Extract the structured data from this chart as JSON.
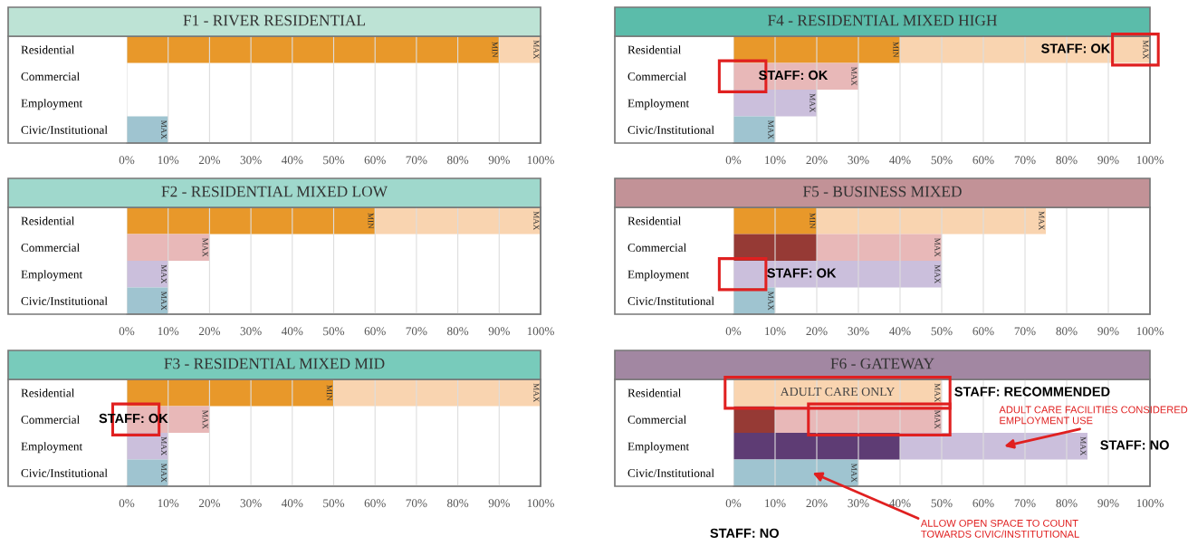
{
  "chart_data": [
    {
      "type": "bar",
      "orientation": "horizontal",
      "stacked": true,
      "grid": "x",
      "title": "F1 - RIVER RESIDENTIAL",
      "categories": [
        "Residential",
        "Commercial",
        "Employment",
        "Civic/Institutional"
      ],
      "xlim": [
        0,
        100
      ],
      "xticks": [
        {
          "value": 0,
          "label": "0%"
        },
        {
          "value": 10,
          "label": "10%"
        },
        {
          "value": 20,
          "label": "20%"
        },
        {
          "value": 30,
          "label": "30%"
        },
        {
          "value": 40,
          "label": "40%"
        },
        {
          "value": 50,
          "label": "50%"
        },
        {
          "value": 60,
          "label": "60%"
        },
        {
          "value": 70,
          "label": "70%"
        },
        {
          "value": 80,
          "label": "80%"
        },
        {
          "value": 90,
          "label": "90%"
        },
        {
          "value": 100,
          "label": "100%"
        }
      ],
      "series": [
        {
          "values": [
            90,
            null,
            null,
            null
          ],
          "colors": [
            "#e8982a",
            "#963a35",
            "#5e3c74",
            "#9fc4d0"
          ],
          "value_labels": [
            "MIN",
            null,
            null,
            null
          ]
        },
        {
          "values": [
            10,
            null,
            null,
            10
          ],
          "colors": [
            "#f9d4b0",
            "#e8b8b8",
            "#cbbfdc",
            "#9fc4d0"
          ],
          "value_labels": [
            "MAX",
            null,
            null,
            "MAX"
          ]
        }
      ]
    },
    {
      "type": "bar",
      "orientation": "horizontal",
      "stacked": true,
      "grid": "x",
      "title": "F4 - RESIDENTIAL MIXED HIGH",
      "categories": [
        "Residential",
        "Commercial",
        "Employment",
        "Civic/Institutional"
      ],
      "xlim": [
        0,
        100
      ],
      "xticks": [
        {
          "value": 0,
          "label": "0%"
        },
        {
          "value": 10,
          "label": "10%"
        },
        {
          "value": 20,
          "label": "20%"
        },
        {
          "value": 30,
          "label": "30%"
        },
        {
          "value": 40,
          "label": "40%"
        },
        {
          "value": 50,
          "label": "50%"
        },
        {
          "value": 60,
          "label": "60%"
        },
        {
          "value": 70,
          "label": "70%"
        },
        {
          "value": 80,
          "label": "80%"
        },
        {
          "value": 90,
          "label": "90%"
        },
        {
          "value": 100,
          "label": "100%"
        }
      ],
      "series": [
        {
          "values": [
            40,
            null,
            null,
            null
          ],
          "colors": [
            "#e8982a",
            "#963a35",
            "#5e3c74",
            "#9fc4d0"
          ],
          "value_labels": [
            "MIN",
            null,
            null,
            null
          ]
        },
        {
          "values": [
            60,
            30,
            20,
            10
          ],
          "colors": [
            "#f9d4b0",
            "#e8b8b8",
            "#cbbfdc",
            "#9fc4d0"
          ],
          "value_labels": [
            "MAX",
            "MAX",
            "MAX",
            "MAX"
          ]
        }
      ],
      "annotations": [
        "STAFF: OK",
        "STAFF: OK"
      ]
    },
    {
      "type": "bar",
      "orientation": "horizontal",
      "stacked": true,
      "grid": "x",
      "title": "F2 - RESIDENTIAL MIXED LOW",
      "categories": [
        "Residential",
        "Commercial",
        "Employment",
        "Civic/Institutional"
      ],
      "xlim": [
        0,
        100
      ],
      "xticks": [
        {
          "value": 0,
          "label": "0%"
        },
        {
          "value": 10,
          "label": "10%"
        },
        {
          "value": 20,
          "label": "20%"
        },
        {
          "value": 30,
          "label": "30%"
        },
        {
          "value": 40,
          "label": "40%"
        },
        {
          "value": 50,
          "label": "50%"
        },
        {
          "value": 60,
          "label": "60%"
        },
        {
          "value": 70,
          "label": "70%"
        },
        {
          "value": 80,
          "label": "80%"
        },
        {
          "value": 90,
          "label": "90%"
        },
        {
          "value": 100,
          "label": "100%"
        }
      ],
      "series": [
        {
          "values": [
            60,
            null,
            null,
            null
          ],
          "colors": [
            "#e8982a",
            "#963a35",
            "#5e3c74",
            "#9fc4d0"
          ],
          "value_labels": [
            "MIN",
            null,
            null,
            null
          ]
        },
        {
          "values": [
            40,
            20,
            10,
            10
          ],
          "colors": [
            "#f9d4b0",
            "#e8b8b8",
            "#cbbfdc",
            "#9fc4d0"
          ],
          "value_labels": [
            "MAX",
            "MAX",
            "MAX",
            "MAX"
          ]
        }
      ]
    },
    {
      "type": "bar",
      "orientation": "horizontal",
      "stacked": true,
      "grid": "x",
      "title": "F5 - BUSINESS MIXED",
      "categories": [
        "Residential",
        "Commercial",
        "Employment",
        "Civic/Institutional"
      ],
      "xlim": [
        0,
        100
      ],
      "xticks": [
        {
          "value": 0,
          "label": "0%"
        },
        {
          "value": 10,
          "label": "10%"
        },
        {
          "value": 20,
          "label": "20%"
        },
        {
          "value": 30,
          "label": "30%"
        },
        {
          "value": 40,
          "label": "40%"
        },
        {
          "value": 50,
          "label": "50%"
        },
        {
          "value": 60,
          "label": "60%"
        },
        {
          "value": 70,
          "label": "70%"
        },
        {
          "value": 80,
          "label": "80%"
        },
        {
          "value": 90,
          "label": "90%"
        },
        {
          "value": 100,
          "label": "100%"
        }
      ],
      "series": [
        {
          "values": [
            20,
            20,
            null,
            null
          ],
          "colors": [
            "#e8982a",
            "#963a35",
            "#5e3c74",
            "#9fc4d0"
          ],
          "value_labels": [
            "MIN",
            null,
            null,
            null
          ]
        },
        {
          "values": [
            55,
            30,
            50,
            10
          ],
          "colors": [
            "#f9d4b0",
            "#e8b8b8",
            "#cbbfdc",
            "#9fc4d0"
          ],
          "value_labels": [
            "MAX",
            "MAX",
            "MAX",
            "MAX"
          ]
        }
      ],
      "annotations": [
        "STAFF: OK"
      ]
    },
    {
      "type": "bar",
      "orientation": "horizontal",
      "stacked": true,
      "grid": "x",
      "title": "F3 - RESIDENTIAL MIXED MID",
      "categories": [
        "Residential",
        "Commercial",
        "Employment",
        "Civic/Institutional"
      ],
      "xlim": [
        0,
        100
      ],
      "xticks": [
        {
          "value": 0,
          "label": "0%"
        },
        {
          "value": 10,
          "label": "10%"
        },
        {
          "value": 20,
          "label": "20%"
        },
        {
          "value": 30,
          "label": "30%"
        },
        {
          "value": 40,
          "label": "40%"
        },
        {
          "value": 50,
          "label": "50%"
        },
        {
          "value": 60,
          "label": "60%"
        },
        {
          "value": 70,
          "label": "70%"
        },
        {
          "value": 80,
          "label": "80%"
        },
        {
          "value": 90,
          "label": "90%"
        },
        {
          "value": 100,
          "label": "100%"
        }
      ],
      "series": [
        {
          "values": [
            50,
            null,
            null,
            null
          ],
          "colors": [
            "#e8982a",
            "#963a35",
            "#5e3c74",
            "#9fc4d0"
          ],
          "value_labels": [
            "MIN",
            null,
            null,
            null
          ]
        },
        {
          "values": [
            50,
            20,
            10,
            10
          ],
          "colors": [
            "#f9d4b0",
            "#e8b8b8",
            "#cbbfdc",
            "#9fc4d0"
          ],
          "value_labels": [
            "MAX",
            "MAX",
            "MAX",
            "MAX"
          ]
        }
      ],
      "annotations": [
        "STAFF: OK"
      ]
    },
    {
      "type": "bar",
      "orientation": "horizontal",
      "stacked": true,
      "grid": "x",
      "title": "F6 - GATEWAY",
      "categories": [
        "Residential",
        "Commercial",
        "Employment",
        "Civic/Institutional"
      ],
      "xlim": [
        0,
        100
      ],
      "xticks": [
        {
          "value": 0,
          "label": "0%"
        },
        {
          "value": 10,
          "label": "10%"
        },
        {
          "value": 20,
          "label": "20%"
        },
        {
          "value": 30,
          "label": "30%"
        },
        {
          "value": 40,
          "label": "40%"
        },
        {
          "value": 50,
          "label": "50%"
        },
        {
          "value": 60,
          "label": "60%"
        },
        {
          "value": 70,
          "label": "70%"
        },
        {
          "value": 80,
          "label": "80%"
        },
        {
          "value": 90,
          "label": "90%"
        },
        {
          "value": 100,
          "label": "100%"
        }
      ],
      "series": [
        {
          "values": [
            null,
            10,
            40,
            null
          ],
          "colors": [
            "#e8982a",
            "#963a35",
            "#5e3c74",
            "#9fc4d0"
          ],
          "value_labels": [
            null,
            null,
            null,
            null
          ]
        },
        {
          "values": [
            50,
            40,
            45,
            30
          ],
          "colors": [
            "#f9d4b0",
            "#e8b8b8",
            "#cbbfdc",
            "#9fc4d0"
          ],
          "value_labels": [
            "MAX",
            "MAX",
            "MAX",
            "MAX"
          ]
        }
      ],
      "annotations": [
        "ADULT CARE ONLY",
        "STAFF: RECOMMENDED",
        "ADULT CARE FACILITIES CONSIDERED\nEMPLOYMENT USE",
        "STAFF: NO",
        "ALLOW OPEN SPACE TO COUNT\nTOWARDS CIVIC/INSTITUTIONAL",
        "STAFF: NO"
      ]
    }
  ]
}
